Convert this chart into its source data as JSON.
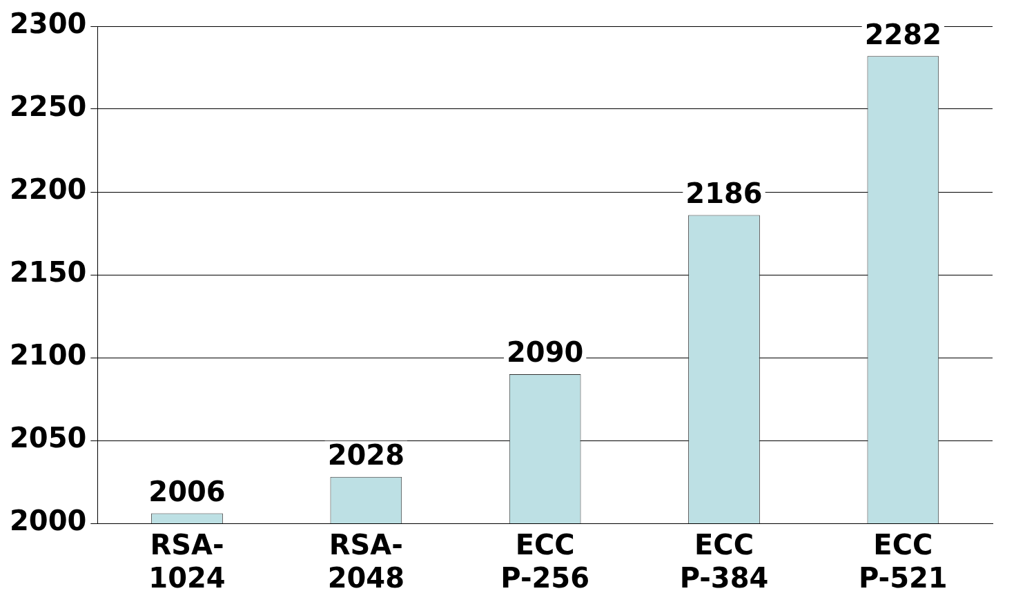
{
  "chart_data": {
    "type": "bar",
    "categories": [
      "RSA-1024",
      "RSA-2048",
      "ECC P-256",
      "ECC P-384",
      "ECC P-521"
    ],
    "values": [
      2006,
      2028,
      2090,
      2186,
      2282
    ],
    "color": "#bde0e4",
    "ylim": [
      2000,
      2300
    ],
    "yticks": [
      2000,
      2050,
      2100,
      2150,
      2200,
      2250,
      2300
    ],
    "grid": "y",
    "data_labels": true,
    "legend": false
  }
}
